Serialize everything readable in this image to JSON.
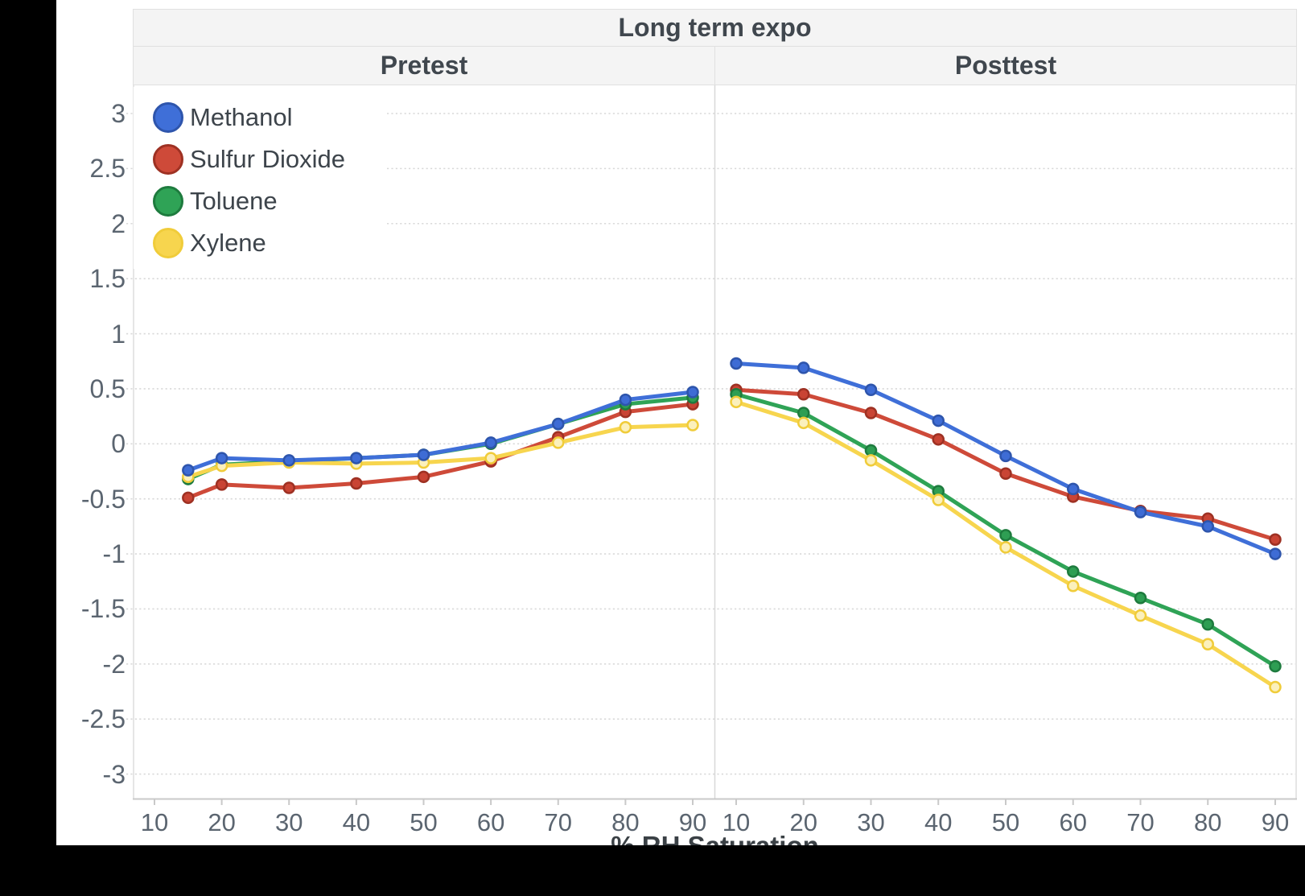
{
  "chart_data": {
    "type": "line",
    "title": "Long term expo",
    "xlabel": "% RH Saturation",
    "ylabel": "",
    "ylim": [
      -3.2,
      3.2
    ],
    "yticks": [
      3,
      2.5,
      2,
      1.5,
      1,
      0.5,
      0,
      -0.5,
      -1,
      -1.5,
      -2,
      -2.5,
      -3
    ],
    "ytick_labels": [
      "3",
      "2.5",
      "2",
      "1.5",
      "1",
      "0.5",
      "0",
      "-0.5",
      "-1",
      "-1.5",
      "-2",
      "-2.5",
      "-3"
    ],
    "xticks": [
      10,
      20,
      30,
      40,
      50,
      60,
      70,
      80,
      90
    ],
    "xtick_labels": [
      "10",
      "20",
      "30",
      "40",
      "50",
      "60",
      "70",
      "80",
      "90"
    ],
    "grid": "horizontal-dotted",
    "legend_position": "top-left-inside",
    "series": [
      {
        "name": "Methanol",
        "line_color": "#3F6FD8",
        "marker_fill": "#3E6CD5",
        "marker_stroke": "#2E55AC"
      },
      {
        "name": "Sulfur Dioxide",
        "line_color": "#CE4A39",
        "marker_fill": "#C94434",
        "marker_stroke": "#9E3123"
      },
      {
        "name": "Toluene",
        "line_color": "#2FA356",
        "marker_fill": "#2E9E53",
        "marker_stroke": "#1E7B3E"
      },
      {
        "name": "Xylene",
        "line_color": "#F7D54E",
        "marker_fill": "#FBF0BC",
        "marker_stroke": "#F0CC3A"
      }
    ],
    "draw_order": [
      "Sulfur Dioxide",
      "Toluene",
      "Xylene",
      "Methanol"
    ],
    "facets": [
      {
        "label": "Pretest",
        "x": [
          15,
          20,
          30,
          40,
          50,
          60,
          70,
          80,
          90
        ],
        "values": {
          "Methanol": [
            -0.24,
            -0.13,
            -0.15,
            -0.13,
            -0.1,
            0.01,
            0.18,
            0.4,
            0.47
          ],
          "Sulfur Dioxide": [
            -0.49,
            -0.37,
            -0.4,
            -0.36,
            -0.3,
            -0.16,
            0.06,
            0.29,
            0.36
          ],
          "Toluene": [
            -0.32,
            -0.19,
            -0.16,
            -0.13,
            -0.1,
            0.0,
            0.18,
            0.36,
            0.42
          ],
          "Xylene": [
            -0.3,
            -0.2,
            -0.17,
            -0.18,
            -0.17,
            -0.13,
            0.01,
            0.15,
            0.17
          ]
        }
      },
      {
        "label": "Posttest",
        "x": [
          10,
          20,
          30,
          40,
          50,
          60,
          70,
          80,
          90
        ],
        "values": {
          "Methanol": [
            0.73,
            0.69,
            0.49,
            0.21,
            -0.11,
            -0.41,
            -0.62,
            -0.75,
            -1.0
          ],
          "Sulfur Dioxide": [
            0.49,
            0.45,
            0.28,
            0.04,
            -0.27,
            -0.48,
            -0.61,
            -0.68,
            -0.87
          ],
          "Toluene": [
            0.45,
            0.28,
            -0.06,
            -0.43,
            -0.83,
            -1.16,
            -1.4,
            -1.64,
            -2.02
          ],
          "Xylene": [
            0.38,
            0.19,
            -0.15,
            -0.51,
            -0.94,
            -1.29,
            -1.56,
            -1.82,
            -2.21
          ]
        }
      }
    ],
    "colors": {
      "strip_bg": "#f4f4f4",
      "strip_border": "#e0e0e0",
      "gridline": "#d9d9d9",
      "axis_line": "#c9c9c9",
      "panel_edge": "#e6e6e6",
      "panel_divider": "#d8d8d8",
      "tick_text": "#5b6570",
      "strip_text": "#40474e"
    }
  }
}
